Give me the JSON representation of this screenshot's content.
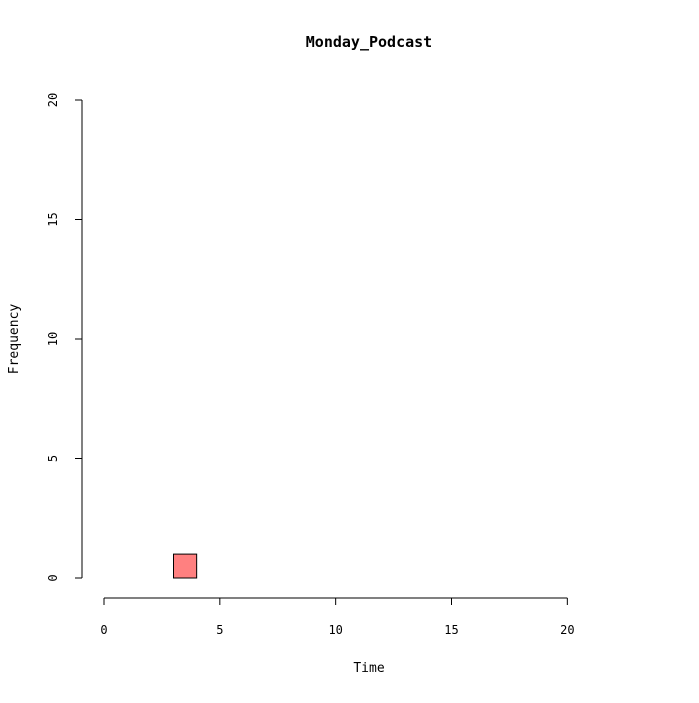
{
  "chart_data": {
    "type": "histogram",
    "title": "Monday_Podcast",
    "xlabel": "Time",
    "ylabel": "Frequency",
    "xlim": [
      0,
      24
    ],
    "ylim": [
      0,
      20
    ],
    "x_ticks": [
      0,
      5,
      10,
      15,
      20
    ],
    "y_ticks": [
      0,
      5,
      10,
      15,
      20
    ],
    "bin_width": 1,
    "bins": [
      {
        "start": 0,
        "end": 1,
        "count": 0
      },
      {
        "start": 1,
        "end": 2,
        "count": 0
      },
      {
        "start": 2,
        "end": 3,
        "count": 0
      },
      {
        "start": 3,
        "end": 4,
        "count": 1
      },
      {
        "start": 4,
        "end": 5,
        "count": 0
      },
      {
        "start": 5,
        "end": 6,
        "count": 0
      },
      {
        "start": 6,
        "end": 7,
        "count": 0
      },
      {
        "start": 7,
        "end": 8,
        "count": 0
      },
      {
        "start": 8,
        "end": 9,
        "count": 0
      },
      {
        "start": 9,
        "end": 10,
        "count": 0
      },
      {
        "start": 10,
        "end": 11,
        "count": 0
      },
      {
        "start": 11,
        "end": 12,
        "count": 0
      },
      {
        "start": 12,
        "end": 13,
        "count": 0
      },
      {
        "start": 13,
        "end": 14,
        "count": 0
      },
      {
        "start": 14,
        "end": 15,
        "count": 0
      },
      {
        "start": 15,
        "end": 16,
        "count": 0
      },
      {
        "start": 16,
        "end": 17,
        "count": 0
      },
      {
        "start": 17,
        "end": 18,
        "count": 0
      },
      {
        "start": 18,
        "end": 19,
        "count": 0
      },
      {
        "start": 19,
        "end": 20,
        "count": 0
      },
      {
        "start": 20,
        "end": 21,
        "count": 0
      },
      {
        "start": 21,
        "end": 22,
        "count": 0
      },
      {
        "start": 22,
        "end": 23,
        "count": 0
      },
      {
        "start": 23,
        "end": 24,
        "count": 0
      }
    ],
    "bar_color": "#ff8080",
    "grid": false,
    "legend": "none"
  }
}
